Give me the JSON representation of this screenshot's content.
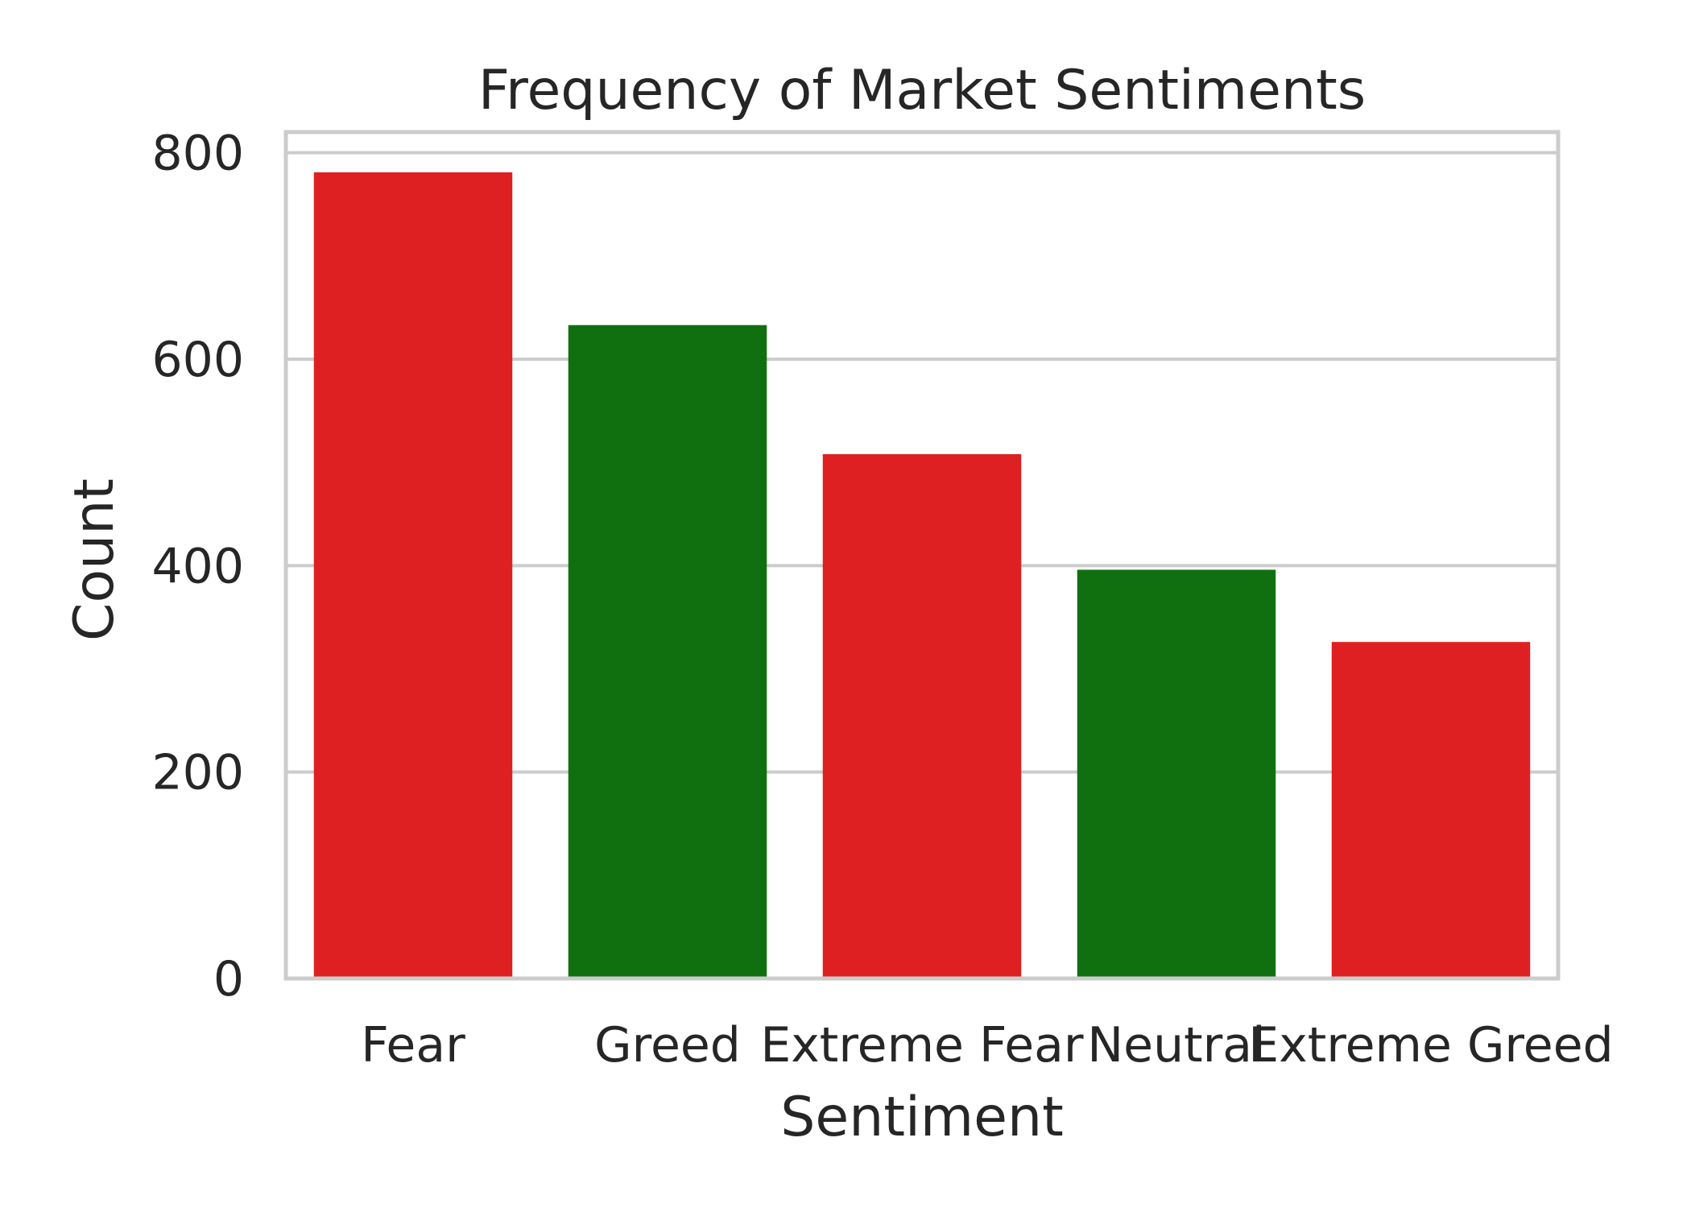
{
  "chart_data": {
    "type": "bar",
    "title": "Frequency of Market Sentiments",
    "xlabel": "Sentiment",
    "ylabel": "Count",
    "categories": [
      "Fear",
      "Greed",
      "Extreme Fear",
      "Neutral",
      "Extreme Greed"
    ],
    "values": [
      781,
      633,
      508,
      396,
      326
    ],
    "bar_colors": [
      "#df2022",
      "#107010",
      "#df2022",
      "#107010",
      "#df2022"
    ],
    "ylim": [
      0,
      820
    ],
    "yticks": [
      0,
      200,
      400,
      600,
      800
    ],
    "ytick_labels": [
      "0",
      "200",
      "400",
      "600",
      "800"
    ],
    "grid": true,
    "grid_axis": "y",
    "grid_color": "#cccccc",
    "spine_color": "#cccccc",
    "text_color": "#262626"
  }
}
